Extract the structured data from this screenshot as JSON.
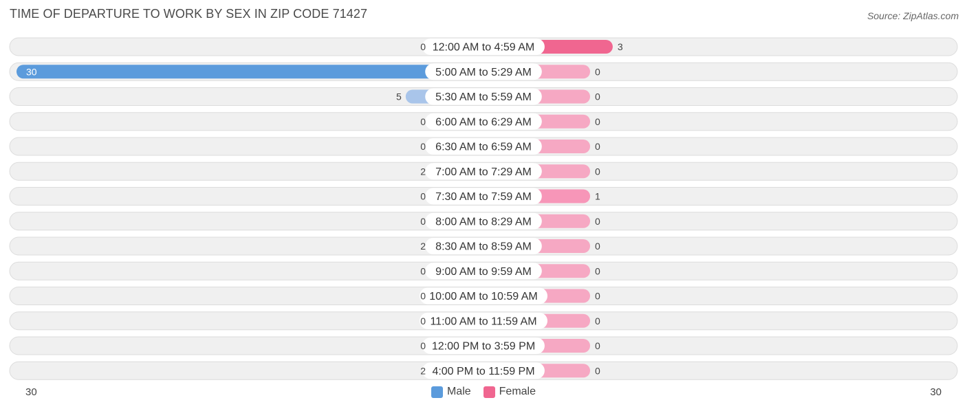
{
  "header": {
    "title": "TIME OF DEPARTURE TO WORK BY SEX IN ZIP CODE 71427",
    "source": "Source: ZipAtlas.com"
  },
  "axis": {
    "left_label": "30",
    "right_label": "30"
  },
  "legend": {
    "male_label": "Male",
    "female_label": "Female"
  },
  "colors": {
    "male": "#a9c5ea",
    "male_strong": "#5b9bdc",
    "female": "#f6a8c3",
    "female_strong": "#f06690",
    "row_bg": "#f0f0f0",
    "row_border": "#dcdcdc"
  },
  "chart_data": {
    "type": "bar",
    "orientation": "horizontal-diverging",
    "title": "TIME OF DEPARTURE TO WORK BY SEX IN ZIP CODE 71427",
    "xlim": [
      -30,
      30
    ],
    "categories": [
      "12:00 AM to 4:59 AM",
      "5:00 AM to 5:29 AM",
      "5:30 AM to 5:59 AM",
      "6:00 AM to 6:29 AM",
      "6:30 AM to 6:59 AM",
      "7:00 AM to 7:29 AM",
      "7:30 AM to 7:59 AM",
      "8:00 AM to 8:29 AM",
      "8:30 AM to 8:59 AM",
      "9:00 AM to 9:59 AM",
      "10:00 AM to 10:59 AM",
      "11:00 AM to 11:59 AM",
      "12:00 PM to 3:59 PM",
      "4:00 PM to 11:59 PM"
    ],
    "series": [
      {
        "name": "Male",
        "values": [
          0,
          30,
          5,
          0,
          0,
          2,
          0,
          0,
          2,
          0,
          0,
          0,
          0,
          2
        ]
      },
      {
        "name": "Female",
        "values": [
          3,
          0,
          0,
          0,
          0,
          0,
          1,
          0,
          0,
          0,
          0,
          0,
          0,
          0
        ]
      }
    ],
    "legend_position": "bottom-center"
  }
}
